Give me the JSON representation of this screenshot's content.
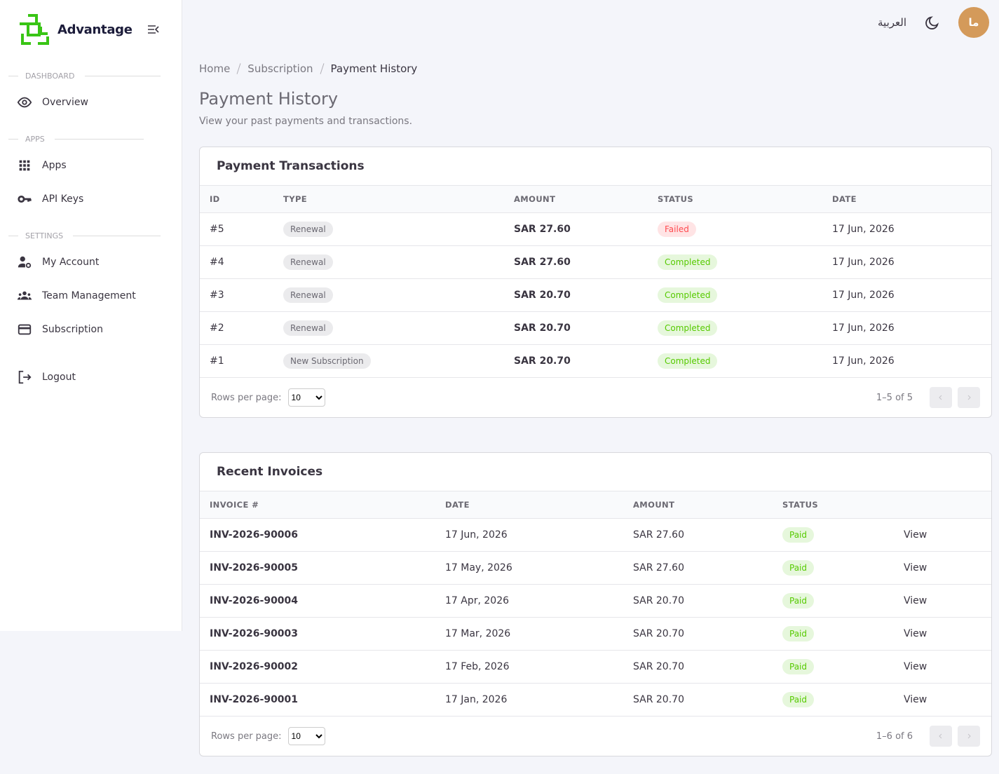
{
  "sidebar": {
    "brand": "Advantage",
    "sections": [
      {
        "title": "DASHBOARD",
        "items": [
          "Overview"
        ]
      },
      {
        "title": "APPS",
        "items": [
          "Apps",
          "API Keys"
        ]
      },
      {
        "title": "SETTINGS",
        "items": [
          "My Account",
          "Team Management",
          "Subscription"
        ]
      }
    ],
    "logout": "Logout"
  },
  "topbar": {
    "language": "العربية",
    "avatar": "ما"
  },
  "breadcrumb": [
    "Home",
    "Subscription",
    "Payment History"
  ],
  "header": {
    "title": "Payment History",
    "subtitle": "View your past payments and transactions."
  },
  "transactions": {
    "title": "Payment Transactions",
    "columns": [
      "ID",
      "TYPE",
      "AMOUNT",
      "STATUS",
      "DATE"
    ],
    "rows": [
      [
        "#5",
        "Renewal",
        "SAR 27.60",
        "Failed",
        "17 Jun, 2026"
      ],
      [
        "#4",
        "Renewal",
        "SAR 27.60",
        "Completed",
        "17 Jun, 2026"
      ],
      [
        "#3",
        "Renewal",
        "SAR 20.70",
        "Completed",
        "17 Jun, 2026"
      ],
      [
        "#2",
        "Renewal",
        "SAR 20.70",
        "Completed",
        "17 Jun, 2026"
      ],
      [
        "#1",
        "New Subscription",
        "SAR 20.70",
        "Completed",
        "17 Jun, 2026"
      ]
    ],
    "rows_per_page_label": "Rows per page:",
    "rows_per_page": 10,
    "range": "1–5 of 5"
  },
  "invoices": {
    "title": "Recent Invoices",
    "columns": [
      "INVOICE #",
      "DATE",
      "AMOUNT",
      "STATUS"
    ],
    "rows": [
      [
        "INV-2026-90006",
        "17 Jun, 2026",
        "SAR 27.60",
        "Paid",
        "View"
      ],
      [
        "INV-2026-90005",
        "17 May, 2026",
        "SAR 27.60",
        "Paid",
        "View"
      ],
      [
        "INV-2026-90004",
        "17 Apr, 2026",
        "SAR 20.70",
        "Paid",
        "View"
      ],
      [
        "INV-2026-90003",
        "17 Mar, 2026",
        "SAR 20.70",
        "Paid",
        "View"
      ],
      [
        "INV-2026-90002",
        "17 Feb, 2026",
        "SAR 20.70",
        "Paid",
        "View"
      ],
      [
        "INV-2026-90001",
        "17 Jan, 2026",
        "SAR 20.70",
        "Paid",
        "View"
      ]
    ],
    "rows_per_page_label": "Rows per page:",
    "rows_per_page": 10,
    "range": "1–6 of 6"
  }
}
